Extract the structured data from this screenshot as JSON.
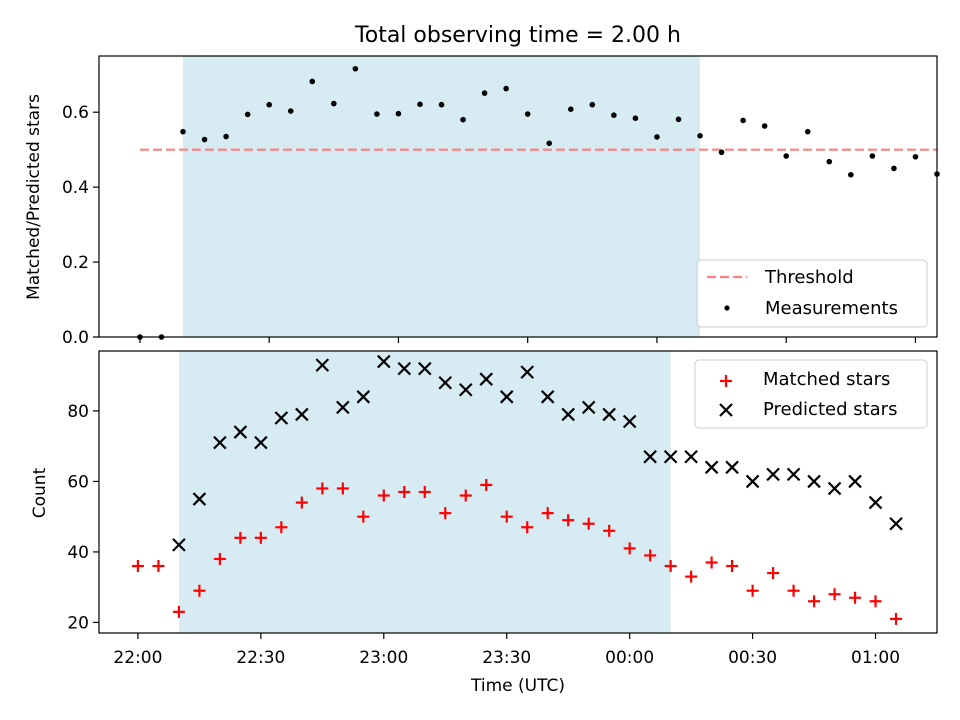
{
  "chart_data": [
    {
      "type": "scatter",
      "title": "Total observing time = 2.00 h",
      "ylabel": "Matched/Predicted stars",
      "ylim": [
        0,
        0.75
      ],
      "y_ticks": [
        "0.0",
        "0.2",
        "0.4",
        "0.6"
      ],
      "xlim_minutes": [
        -9.5,
        185
      ],
      "x_ticks": [
        0,
        30,
        60,
        90,
        120,
        150,
        180
      ],
      "highlight_span_minutes": [
        10,
        130
      ],
      "highlight_color": "#add8e6",
      "threshold": {
        "name": "Threshold",
        "value": 0.5,
        "x_range_minutes": [
          0,
          185
        ],
        "color": "#ff8080"
      },
      "series": [
        {
          "name": "Measurements",
          "color": "#000000",
          "x_minutes": [
            0,
            5,
            10,
            15,
            20,
            25,
            30,
            35,
            40,
            45,
            50,
            55,
            60,
            65,
            70,
            75,
            80,
            85,
            90,
            95,
            100,
            105,
            110,
            115,
            120,
            125,
            130,
            135,
            140,
            145,
            150,
            155,
            160,
            165,
            170,
            175,
            180,
            185
          ],
          "values": [
            0.0,
            0.0,
            0.548,
            0.527,
            0.535,
            0.594,
            0.62,
            0.603,
            0.682,
            0.623,
            0.716,
            0.595,
            0.596,
            0.621,
            0.62,
            0.58,
            0.651,
            0.663,
            0.595,
            0.517,
            0.608,
            0.62,
            0.592,
            0.584,
            0.534,
            0.581,
            0.537,
            0.493,
            0.578,
            0.563,
            0.483,
            0.548,
            0.468,
            0.433,
            0.483,
            0.45,
            0.481,
            0.435
          ]
        }
      ],
      "legend": {
        "position": "lower-right"
      }
    },
    {
      "type": "scatter",
      "xlabel": "Time (UTC)",
      "ylabel": "Count",
      "ylim": [
        17,
        97
      ],
      "y_ticks": [
        "20",
        "40",
        "60",
        "80"
      ],
      "xlim_minutes": [
        -9.5,
        195
      ],
      "x_ticks": [
        "22:00",
        "22:30",
        "23:00",
        "23:30",
        "00:00",
        "00:30",
        "01:00"
      ],
      "x_ticks_minutes": [
        0,
        30,
        60,
        90,
        120,
        150,
        180
      ],
      "highlight_span_minutes": [
        10,
        130
      ],
      "highlight_color": "#add8e6",
      "categories_minutes": [
        0,
        5,
        10,
        15,
        20,
        25,
        30,
        35,
        40,
        45,
        50,
        55,
        60,
        65,
        70,
        75,
        80,
        85,
        90,
        95,
        100,
        105,
        110,
        115,
        120,
        125,
        130,
        135,
        140,
        145,
        150,
        155,
        160,
        165,
        170,
        175,
        180,
        185
      ],
      "series": [
        {
          "name": "Matched stars",
          "color": "#ff0000",
          "marker": "plus",
          "values": [
            36,
            36,
            23,
            29,
            38,
            44,
            44,
            47,
            54,
            58,
            58,
            50,
            56,
            57,
            57,
            51,
            56,
            59,
            50,
            47,
            51,
            49,
            48,
            46,
            41,
            39,
            36,
            33,
            37,
            36,
            29,
            34,
            29,
            26,
            28,
            27,
            26,
            21
          ]
        },
        {
          "name": "Predicted stars",
          "color": "#000000",
          "marker": "x",
          "values": [
            null,
            null,
            42,
            55,
            71,
            74,
            71,
            78,
            79,
            93,
            81,
            84,
            94,
            92,
            92,
            88,
            86,
            89,
            84,
            91,
            84,
            79,
            81,
            79,
            77,
            67,
            67,
            67,
            64,
            64,
            60,
            62,
            62,
            60,
            58,
            60,
            54,
            48
          ]
        }
      ],
      "legend": {
        "position": "upper-right"
      }
    }
  ]
}
